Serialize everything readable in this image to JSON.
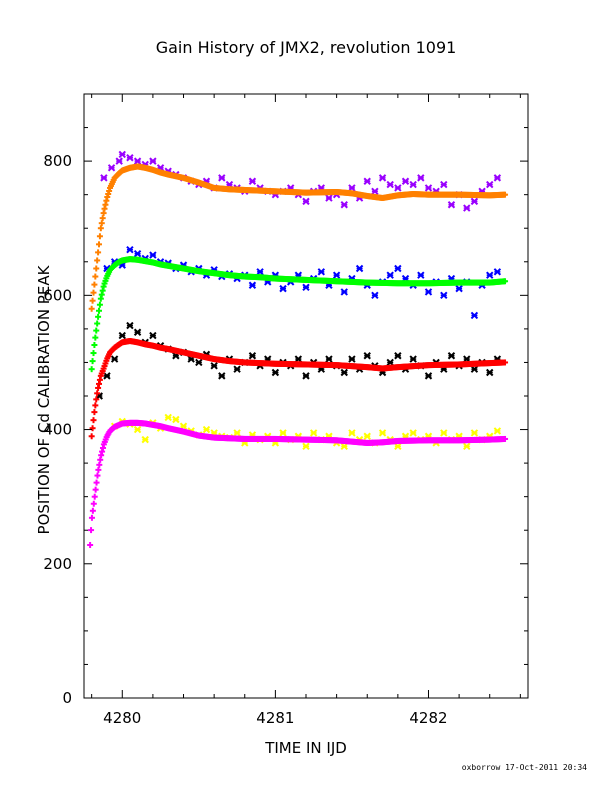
{
  "chart_data": {
    "type": "scatter",
    "title": "Gain History of JMX2, revolution 1091",
    "xlabel": "TIME IN IJD",
    "ylabel": "POSITION OF Cd CALIBRATION PEAK",
    "xlim": [
      4279.75,
      4282.65
    ],
    "ylim": [
      0,
      900
    ],
    "x_ticks": [
      4280,
      4281,
      4282
    ],
    "y_ticks": [
      0,
      200,
      400,
      600,
      800
    ],
    "grid": false,
    "legend": "none",
    "series": [
      {
        "kind": "points",
        "color": "#9900ff",
        "points": [
          [
            4279.88,
            775
          ],
          [
            4279.93,
            790
          ],
          [
            4279.98,
            800
          ],
          [
            4280.0,
            810
          ],
          [
            4280.05,
            805
          ],
          [
            4280.1,
            800
          ],
          [
            4280.15,
            795
          ],
          [
            4280.2,
            800
          ],
          [
            4280.25,
            790
          ],
          [
            4280.3,
            785
          ],
          [
            4280.35,
            780
          ],
          [
            4280.4,
            775
          ],
          [
            4280.45,
            770
          ],
          [
            4280.5,
            765
          ],
          [
            4280.55,
            770
          ],
          [
            4280.6,
            760
          ],
          [
            4280.65,
            775
          ],
          [
            4280.7,
            765
          ],
          [
            4280.75,
            760
          ],
          [
            4280.8,
            755
          ],
          [
            4280.85,
            770
          ],
          [
            4280.9,
            760
          ],
          [
            4280.95,
            755
          ],
          [
            4281.0,
            750
          ],
          [
            4281.05,
            755
          ],
          [
            4281.1,
            760
          ],
          [
            4281.15,
            750
          ],
          [
            4281.2,
            740
          ],
          [
            4281.25,
            755
          ],
          [
            4281.3,
            760
          ],
          [
            4281.35,
            745
          ],
          [
            4281.4,
            750
          ],
          [
            4281.45,
            735
          ],
          [
            4281.5,
            760
          ],
          [
            4281.55,
            745
          ],
          [
            4281.6,
            770
          ],
          [
            4281.65,
            755
          ],
          [
            4281.7,
            775
          ],
          [
            4281.75,
            765
          ],
          [
            4281.8,
            760
          ],
          [
            4281.85,
            770
          ],
          [
            4281.9,
            765
          ],
          [
            4281.95,
            775
          ],
          [
            4282.0,
            760
          ],
          [
            4282.05,
            755
          ],
          [
            4282.1,
            765
          ],
          [
            4282.15,
            735
          ],
          [
            4282.2,
            750
          ],
          [
            4282.25,
            730
          ],
          [
            4282.3,
            740
          ],
          [
            4282.35,
            755
          ],
          [
            4282.4,
            765
          ],
          [
            4282.45,
            775
          ]
        ]
      },
      {
        "kind": "points",
        "color": "#0000ff",
        "points": [
          [
            4279.9,
            640
          ],
          [
            4279.95,
            650
          ],
          [
            4280.0,
            645
          ],
          [
            4280.05,
            668
          ],
          [
            4280.1,
            662
          ],
          [
            4280.15,
            655
          ],
          [
            4280.2,
            660
          ],
          [
            4280.25,
            650
          ],
          [
            4280.3,
            648
          ],
          [
            4280.35,
            640
          ],
          [
            4280.4,
            645
          ],
          [
            4280.45,
            635
          ],
          [
            4280.5,
            640
          ],
          [
            4280.55,
            630
          ],
          [
            4280.6,
            638
          ],
          [
            4280.65,
            628
          ],
          [
            4280.7,
            632
          ],
          [
            4280.75,
            625
          ],
          [
            4280.8,
            630
          ],
          [
            4280.85,
            615
          ],
          [
            4280.9,
            635
          ],
          [
            4280.95,
            620
          ],
          [
            4281.0,
            630
          ],
          [
            4281.05,
            610
          ],
          [
            4281.1,
            620
          ],
          [
            4281.15,
            630
          ],
          [
            4281.2,
            612
          ],
          [
            4281.25,
            625
          ],
          [
            4281.3,
            635
          ],
          [
            4281.35,
            615
          ],
          [
            4281.4,
            630
          ],
          [
            4281.45,
            605
          ],
          [
            4281.5,
            625
          ],
          [
            4281.55,
            640
          ],
          [
            4281.6,
            615
          ],
          [
            4281.65,
            600
          ],
          [
            4281.7,
            620
          ],
          [
            4281.75,
            630
          ],
          [
            4281.8,
            640
          ],
          [
            4281.85,
            625
          ],
          [
            4281.9,
            615
          ],
          [
            4281.95,
            630
          ],
          [
            4282.0,
            605
          ],
          [
            4282.05,
            620
          ],
          [
            4282.1,
            600
          ],
          [
            4282.15,
            625
          ],
          [
            4282.2,
            610
          ],
          [
            4282.25,
            620
          ],
          [
            4282.3,
            570
          ],
          [
            4282.35,
            615
          ],
          [
            4282.4,
            630
          ],
          [
            4282.45,
            635
          ]
        ]
      },
      {
        "kind": "points",
        "color": "#000000",
        "points": [
          [
            4279.85,
            450
          ],
          [
            4279.9,
            480
          ],
          [
            4279.95,
            505
          ],
          [
            4280.0,
            540
          ],
          [
            4280.05,
            555
          ],
          [
            4280.1,
            545
          ],
          [
            4280.15,
            530
          ],
          [
            4280.2,
            540
          ],
          [
            4280.25,
            525
          ],
          [
            4280.3,
            520
          ],
          [
            4280.35,
            510
          ],
          [
            4280.4,
            515
          ],
          [
            4280.45,
            505
          ],
          [
            4280.5,
            500
          ],
          [
            4280.55,
            512
          ],
          [
            4280.6,
            495
          ],
          [
            4280.65,
            480
          ],
          [
            4280.7,
            505
          ],
          [
            4280.75,
            490
          ],
          [
            4280.8,
            500
          ],
          [
            4280.85,
            510
          ],
          [
            4280.9,
            495
          ],
          [
            4280.95,
            505
          ],
          [
            4281.0,
            485
          ],
          [
            4281.05,
            500
          ],
          [
            4281.1,
            495
          ],
          [
            4281.15,
            505
          ],
          [
            4281.2,
            480
          ],
          [
            4281.25,
            500
          ],
          [
            4281.3,
            490
          ],
          [
            4281.35,
            505
          ],
          [
            4281.4,
            495
          ],
          [
            4281.45,
            485
          ],
          [
            4281.5,
            505
          ],
          [
            4281.55,
            490
          ],
          [
            4281.6,
            510
          ],
          [
            4281.65,
            495
          ],
          [
            4281.7,
            485
          ],
          [
            4281.75,
            500
          ],
          [
            4281.8,
            510
          ],
          [
            4281.85,
            490
          ],
          [
            4281.9,
            505
          ],
          [
            4281.95,
            495
          ],
          [
            4282.0,
            480
          ],
          [
            4282.05,
            500
          ],
          [
            4282.1,
            490
          ],
          [
            4282.15,
            510
          ],
          [
            4282.2,
            495
          ],
          [
            4282.25,
            505
          ],
          [
            4282.3,
            490
          ],
          [
            4282.35,
            500
          ],
          [
            4282.4,
            485
          ],
          [
            4282.45,
            505
          ]
        ]
      },
      {
        "kind": "points",
        "color": "#ffff00",
        "points": [
          [
            4279.95,
            405
          ],
          [
            4280.0,
            412
          ],
          [
            4280.05,
            408
          ],
          [
            4280.1,
            400
          ],
          [
            4280.15,
            385
          ],
          [
            4280.2,
            410
          ],
          [
            4280.25,
            402
          ],
          [
            4280.3,
            418
          ],
          [
            4280.35,
            415
          ],
          [
            4280.4,
            405
          ],
          [
            4280.45,
            398
          ],
          [
            4280.5,
            392
          ],
          [
            4280.55,
            400
          ],
          [
            4280.6,
            395
          ],
          [
            4280.65,
            390
          ],
          [
            4280.7,
            388
          ],
          [
            4280.75,
            395
          ],
          [
            4280.8,
            380
          ],
          [
            4280.85,
            392
          ],
          [
            4280.9,
            385
          ],
          [
            4280.95,
            390
          ],
          [
            4281.0,
            380
          ],
          [
            4281.05,
            395
          ],
          [
            4281.1,
            385
          ],
          [
            4281.15,
            390
          ],
          [
            4281.2,
            375
          ],
          [
            4281.25,
            395
          ],
          [
            4281.3,
            385
          ],
          [
            4281.35,
            390
          ],
          [
            4281.4,
            380
          ],
          [
            4281.45,
            375
          ],
          [
            4281.5,
            395
          ],
          [
            4281.55,
            385
          ],
          [
            4281.6,
            390
          ],
          [
            4281.65,
            380
          ],
          [
            4281.7,
            395
          ],
          [
            4281.75,
            385
          ],
          [
            4281.8,
            375
          ],
          [
            4281.85,
            390
          ],
          [
            4281.9,
            395
          ],
          [
            4281.95,
            385
          ],
          [
            4282.0,
            390
          ],
          [
            4282.05,
            380
          ],
          [
            4282.1,
            395
          ],
          [
            4282.15,
            385
          ],
          [
            4282.2,
            390
          ],
          [
            4282.25,
            375
          ],
          [
            4282.3,
            395
          ],
          [
            4282.35,
            385
          ],
          [
            4282.4,
            390
          ],
          [
            4282.45,
            398
          ]
        ]
      },
      {
        "kind": "curve",
        "color": "#ff8000",
        "x": [
          4279.8,
          4279.82,
          4279.84,
          4279.86,
          4279.88,
          4279.9,
          4279.92,
          4279.95,
          4279.98,
          4280.0,
          4280.05,
          4280.1,
          4280.15,
          4280.2,
          4280.25,
          4280.3,
          4280.4,
          4280.5,
          4280.6,
          4280.7,
          4280.8,
          4280.9,
          4281.0,
          4281.2,
          4281.4,
          4281.5,
          4281.6,
          4281.7,
          4281.8,
          4281.9,
          4282.0,
          4282.2,
          4282.4,
          4282.5
        ],
        "y": [
          580,
          620,
          660,
          700,
          725,
          745,
          760,
          775,
          782,
          786,
          790,
          792,
          790,
          787,
          783,
          780,
          775,
          768,
          760,
          758,
          757,
          756,
          755,
          753,
          754,
          752,
          748,
          745,
          749,
          751,
          750,
          750,
          749,
          750
        ]
      },
      {
        "kind": "curve",
        "color": "#00ff00",
        "x": [
          4279.8,
          4279.82,
          4279.84,
          4279.86,
          4279.88,
          4279.9,
          4279.92,
          4279.95,
          4279.98,
          4280.0,
          4280.05,
          4280.1,
          4280.15,
          4280.2,
          4280.25,
          4280.3,
          4280.4,
          4280.5,
          4280.6,
          4280.7,
          4280.8,
          4280.9,
          4281.0,
          4281.2,
          4281.4,
          4281.6,
          4281.8,
          4282.0,
          4282.2,
          4282.4,
          4282.5
        ],
        "y": [
          490,
          530,
          565,
          595,
          615,
          628,
          638,
          645,
          650,
          652,
          654,
          653,
          651,
          649,
          646,
          644,
          640,
          636,
          633,
          630,
          628,
          627,
          625,
          623,
          621,
          619,
          618,
          618,
          619,
          619,
          621
        ]
      },
      {
        "kind": "curve",
        "color": "#ff0000",
        "x": [
          4279.8,
          4279.82,
          4279.84,
          4279.86,
          4279.88,
          4279.9,
          4279.92,
          4279.95,
          4279.98,
          4280.0,
          4280.05,
          4280.1,
          4280.15,
          4280.2,
          4280.25,
          4280.3,
          4280.4,
          4280.5,
          4280.6,
          4280.7,
          4280.8,
          4280.9,
          4281.0,
          4281.2,
          4281.4,
          4281.6,
          4281.7,
          4281.8,
          4282.0,
          4282.2,
          4282.4,
          4282.5
        ],
        "y": [
          390,
          430,
          460,
          480,
          492,
          505,
          515,
          522,
          527,
          530,
          532,
          530,
          527,
          525,
          522,
          520,
          515,
          510,
          505,
          502,
          500,
          499,
          498,
          497,
          496,
          493,
          491,
          493,
          496,
          497,
          499,
          500
        ]
      },
      {
        "kind": "curve",
        "color": "#ff00ff",
        "x": [
          4279.79,
          4279.8,
          4279.82,
          4279.84,
          4279.86,
          4279.88,
          4279.9,
          4279.92,
          4279.95,
          4279.98,
          4280.0,
          4280.05,
          4280.1,
          4280.15,
          4280.2,
          4280.25,
          4280.3,
          4280.4,
          4280.5,
          4280.6,
          4280.7,
          4280.8,
          4280.9,
          4281.0,
          4281.2,
          4281.4,
          4281.6,
          4281.7,
          4281.8,
          4282.0,
          4282.2,
          4282.4,
          4282.5
        ],
        "y": [
          228,
          265,
          300,
          335,
          360,
          378,
          390,
          398,
          404,
          407,
          409,
          410,
          410,
          409,
          407,
          405,
          402,
          397,
          391,
          388,
          387,
          386,
          386,
          386,
          385,
          384,
          380,
          381,
          383,
          384,
          384,
          385,
          386
        ]
      }
    ]
  },
  "footer": "oxborrow 17-Oct-2011 20:34"
}
